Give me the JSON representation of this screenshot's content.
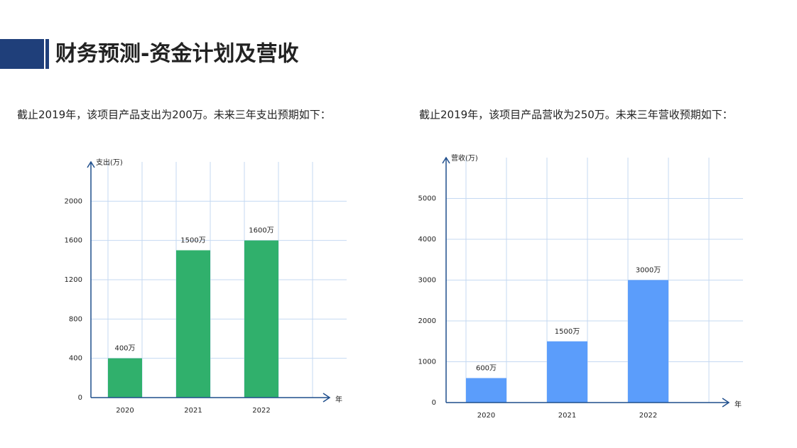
{
  "title": "财务预测-资金计划及营收",
  "chart_data": [
    {
      "type": "bar",
      "caption": "截止2019年，该项目产品支出为200万。未来三年支出预期如下：",
      "ylabel": "支出(万)",
      "xlabel": "年",
      "categories": [
        "2020",
        "2021",
        "2022"
      ],
      "values": [
        400,
        1500,
        1600
      ],
      "value_labels": [
        "400万",
        "1500万",
        "1600万"
      ],
      "color": "#30b06c",
      "ylim": [
        0,
        2400
      ],
      "yticks": [
        0,
        400,
        800,
        1200,
        1600,
        2000
      ],
      "grid": true
    },
    {
      "type": "bar",
      "caption": "截止2019年，该项目产品营收为250万。未来三年营收预期如下：",
      "ylabel": "营收(万)",
      "xlabel": "年",
      "categories": [
        "2020",
        "2021",
        "2022"
      ],
      "values": [
        600,
        1500,
        3000
      ],
      "value_labels": [
        "600万",
        "1500万",
        "3000万"
      ],
      "color": "#5b9dfb",
      "ylim": [
        0,
        6000
      ],
      "yticks": [
        0,
        1000,
        2000,
        3000,
        4000,
        5000
      ],
      "grid": true
    }
  ]
}
